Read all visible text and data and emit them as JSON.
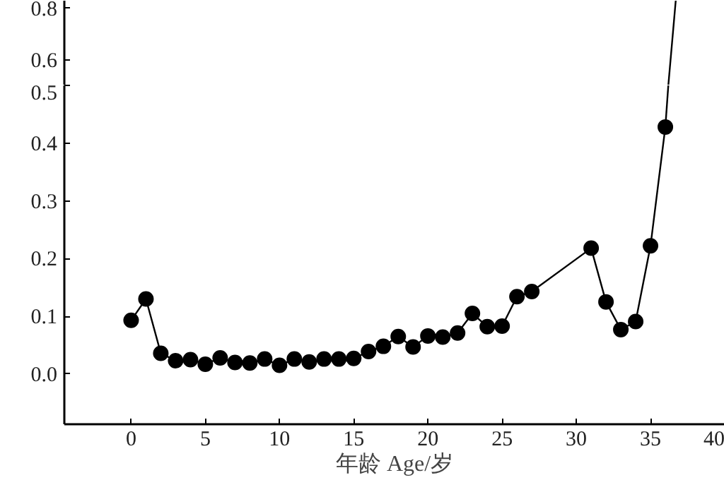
{
  "chart_data": [
    {
      "type": "line",
      "xlim": [
        -4.5,
        40
      ],
      "ylim": [
        0.5,
        0.83
      ],
      "xticks": [
        0,
        5,
        10,
        15,
        20,
        25,
        30,
        35,
        40
      ],
      "yticks": [
        0.6,
        0.8
      ],
      "tick_labels": "y",
      "grid": false,
      "series": [
        {
          "color": "#000000",
          "marker": "none",
          "x": [
            36.2,
            36.7
          ],
          "values": [
            0.5,
            0.83
          ]
        }
      ]
    },
    {
      "type": "line",
      "xlabel": "年龄 Age/岁",
      "xlim": [
        -4.5,
        40
      ],
      "ylim": [
        -0.087,
        0.5
      ],
      "xticks": [
        0,
        5,
        10,
        15,
        20,
        25,
        30,
        35,
        40
      ],
      "yticks": [
        {
          "value": 0,
          "label": "0.0"
        },
        0.1,
        0.2,
        0.3,
        0.4,
        0.5
      ],
      "grid": false,
      "series": [
        {
          "color": "#000000",
          "marker": "circle",
          "x": [
            0,
            1,
            2,
            3,
            4,
            5,
            6,
            7,
            8,
            9,
            10,
            11,
            12,
            13,
            14,
            15,
            16,
            17,
            18,
            19,
            20,
            21,
            22,
            23,
            24,
            25,
            26,
            27,
            31,
            32,
            33,
            34,
            35,
            36
          ],
          "values": [
            0.093,
            0.13,
            0.036,
            0.023,
            0.025,
            0.017,
            0.028,
            0.02,
            0.019,
            0.026,
            0.015,
            0.026,
            0.021,
            0.026,
            0.026,
            0.027,
            0.039,
            0.048,
            0.065,
            0.047,
            0.066,
            0.064,
            0.071,
            0.105,
            0.082,
            0.083,
            0.134,
            0.143,
            0.218,
            0.125,
            0.077,
            0.091,
            0.222,
            0.428
          ]
        },
        {
          "color": "#000000",
          "marker": "none",
          "x": [
            36,
            36.2
          ],
          "values": [
            0.428,
            0.5
          ]
        }
      ]
    }
  ]
}
